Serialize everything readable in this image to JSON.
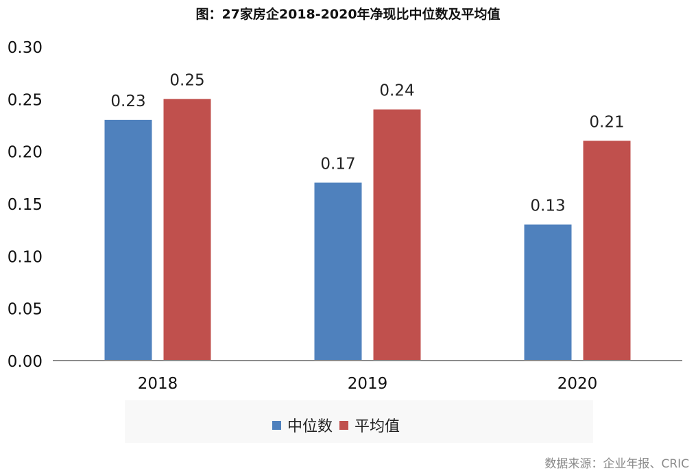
{
  "chart_data": {
    "type": "bar",
    "title": "图：27家房企2018-2020年净现比中位数及平均值",
    "categories": [
      "2018",
      "2019",
      "2020"
    ],
    "series": [
      {
        "name": "中位数",
        "values": [
          0.23,
          0.17,
          0.13
        ],
        "labels": [
          "0.23",
          "0.17",
          "0.13"
        ],
        "color": "#4f81bd"
      },
      {
        "name": "平均值",
        "values": [
          0.25,
          0.24,
          0.21
        ],
        "labels": [
          "0.25",
          "0.24",
          "0.21"
        ],
        "color": "#c0504d"
      }
    ],
    "ylim": [
      0,
      0.3
    ],
    "yticks": [
      "0.00",
      "0.05",
      "0.10",
      "0.15",
      "0.20",
      "0.25",
      "0.30"
    ],
    "xlabel": "",
    "ylabel": "",
    "grid": false,
    "legend_position": "bottom"
  },
  "source": "数据来源：企业年报、CRIC"
}
